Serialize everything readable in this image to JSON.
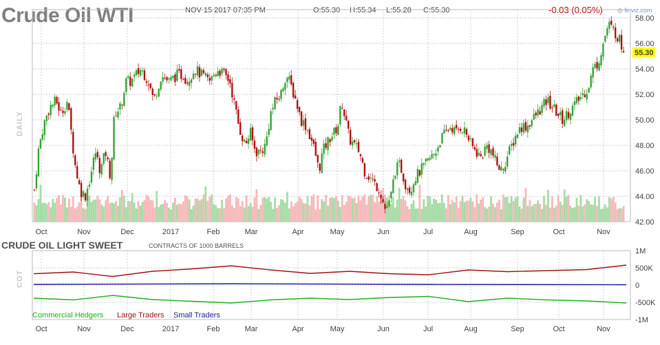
{
  "header": {
    "title": "Crude Oil WTI",
    "datetime": "NOV 15 2017 07:35 PM",
    "open": "O:55.30",
    "high": "H:55.34",
    "low": "L:55.28",
    "close": "C:55.30",
    "change": "-0.03 (0.05%)",
    "brand": "finviz.com",
    "period_label": "DAILY",
    "price_badge": "55.30"
  },
  "cot": {
    "title": "CRUDE OIL LIGHT SWEET",
    "subtitle": "CONTRACTS OF 1000 BARRELS",
    "side_label": "COT",
    "legend": [
      "Commercial Hedgers",
      "Large Traders",
      "Small Traders"
    ]
  },
  "colors": {
    "up": "#33a533",
    "down": "#b01010",
    "vol_up": "#a6dba6",
    "vol_down": "#f6b8b8",
    "hedgers": "#1fae1f",
    "large": "#a01010",
    "small": "#1a1a9a",
    "badge": "#ffff00"
  },
  "chart_data": [
    {
      "type": "candlestick",
      "title": "Crude Oil WTI",
      "x_ticks": [
        "Oct",
        "Nov",
        "Dec",
        "2017",
        "Feb",
        "Mar",
        "Apr",
        "May",
        "Jun",
        "Jul",
        "Aug",
        "Sep",
        "Oct",
        "Nov"
      ],
      "y_ticks": [
        "58.00",
        "56.00",
        "54.00",
        "52.00",
        "50.00",
        "48.00",
        "46.00",
        "44.00",
        "42.00"
      ],
      "ylim": [
        42,
        58
      ],
      "close_path": [
        {
          "x": 0.0,
          "y": 44.5
        },
        {
          "x": 0.15,
          "y": 47.5
        },
        {
          "x": 0.35,
          "y": 49.5
        },
        {
          "x": 0.6,
          "y": 51.0
        },
        {
          "x": 0.85,
          "y": 51.5
        },
        {
          "x": 1.05,
          "y": 50.5
        },
        {
          "x": 1.3,
          "y": 51.5
        },
        {
          "x": 1.45,
          "y": 49.0
        },
        {
          "x": 1.6,
          "y": 46.5
        },
        {
          "x": 1.8,
          "y": 44.5
        },
        {
          "x": 2.0,
          "y": 44.0
        },
        {
          "x": 2.2,
          "y": 45.5
        },
        {
          "x": 2.4,
          "y": 47.5
        },
        {
          "x": 2.6,
          "y": 46.0
        },
        {
          "x": 2.8,
          "y": 47.5
        },
        {
          "x": 3.0,
          "y": 45.5
        },
        {
          "x": 3.15,
          "y": 50.5
        },
        {
          "x": 3.4,
          "y": 51.0
        },
        {
          "x": 3.6,
          "y": 53.0
        },
        {
          "x": 3.8,
          "y": 53.0
        },
        {
          "x": 4.0,
          "y": 53.5
        },
        {
          "x": 4.2,
          "y": 54.0
        },
        {
          "x": 4.5,
          "y": 53.0
        },
        {
          "x": 4.7,
          "y": 51.5
        },
        {
          "x": 5.0,
          "y": 53.5
        },
        {
          "x": 5.3,
          "y": 53.0
        },
        {
          "x": 5.6,
          "y": 53.5
        },
        {
          "x": 5.9,
          "y": 53.5
        },
        {
          "x": 6.0,
          "y": 53.0
        },
        {
          "x": 6.3,
          "y": 54.0
        },
        {
          "x": 6.6,
          "y": 53.5
        },
        {
          "x": 6.9,
          "y": 53.0
        },
        {
          "x": 7.2,
          "y": 54.0
        },
        {
          "x": 7.5,
          "y": 53.5
        },
        {
          "x": 7.7,
          "y": 53.0
        },
        {
          "x": 7.9,
          "y": 51.0
        },
        {
          "x": 8.05,
          "y": 49.5
        },
        {
          "x": 8.3,
          "y": 48.0
        },
        {
          "x": 8.5,
          "y": 49.0
        },
        {
          "x": 8.7,
          "y": 47.5
        },
        {
          "x": 8.9,
          "y": 47.5
        },
        {
          "x": 9.1,
          "y": 48.0
        },
        {
          "x": 9.3,
          "y": 50.5
        },
        {
          "x": 9.5,
          "y": 51.5
        },
        {
          "x": 9.7,
          "y": 52.0
        },
        {
          "x": 9.9,
          "y": 53.5
        },
        {
          "x": 10.05,
          "y": 53.0
        },
        {
          "x": 10.3,
          "y": 51.5
        },
        {
          "x": 10.5,
          "y": 50.0
        },
        {
          "x": 10.7,
          "y": 49.5
        },
        {
          "x": 10.9,
          "y": 48.5
        },
        {
          "x": 11.05,
          "y": 47.5
        },
        {
          "x": 11.2,
          "y": 46.0
        },
        {
          "x": 11.35,
          "y": 47.5
        },
        {
          "x": 11.6,
          "y": 48.5
        },
        {
          "x": 11.8,
          "y": 49.0
        },
        {
          "x": 11.95,
          "y": 49.5
        },
        {
          "x": 12.1,
          "y": 51.5
        },
        {
          "x": 12.25,
          "y": 50.0
        },
        {
          "x": 12.4,
          "y": 48.5
        },
        {
          "x": 12.6,
          "y": 48.0
        },
        {
          "x": 12.8,
          "y": 47.5
        },
        {
          "x": 13.0,
          "y": 46.0
        },
        {
          "x": 13.2,
          "y": 45.5
        },
        {
          "x": 13.4,
          "y": 45.0
        },
        {
          "x": 13.6,
          "y": 44.5
        },
        {
          "x": 13.8,
          "y": 43.0
        },
        {
          "x": 14.0,
          "y": 43.5
        },
        {
          "x": 14.2,
          "y": 46.0
        },
        {
          "x": 14.4,
          "y": 46.5
        },
        {
          "x": 14.6,
          "y": 45.0
        },
        {
          "x": 14.8,
          "y": 44.5
        },
        {
          "x": 15.0,
          "y": 45.5
        },
        {
          "x": 15.2,
          "y": 46.0
        },
        {
          "x": 15.4,
          "y": 46.5
        },
        {
          "x": 15.6,
          "y": 47.0
        },
        {
          "x": 15.8,
          "y": 47.5
        },
        {
          "x": 16.0,
          "y": 48.5
        },
        {
          "x": 16.2,
          "y": 49.0
        },
        {
          "x": 16.4,
          "y": 49.5
        },
        {
          "x": 16.6,
          "y": 49.0
        },
        {
          "x": 16.8,
          "y": 49.5
        },
        {
          "x": 17.0,
          "y": 49.0
        },
        {
          "x": 17.2,
          "y": 48.0
        },
        {
          "x": 17.4,
          "y": 47.5
        },
        {
          "x": 17.6,
          "y": 47.0
        },
        {
          "x": 17.8,
          "y": 48.0
        },
        {
          "x": 18.0,
          "y": 47.5
        },
        {
          "x": 18.2,
          "y": 46.5
        },
        {
          "x": 18.4,
          "y": 46.0
        },
        {
          "x": 18.6,
          "y": 47.0
        },
        {
          "x": 18.8,
          "y": 48.0
        },
        {
          "x": 19.0,
          "y": 49.0
        },
        {
          "x": 19.2,
          "y": 49.5
        },
        {
          "x": 19.4,
          "y": 49.5
        },
        {
          "x": 19.6,
          "y": 50.0
        },
        {
          "x": 19.8,
          "y": 50.5
        },
        {
          "x": 20.0,
          "y": 51.0
        },
        {
          "x": 20.2,
          "y": 51.5
        },
        {
          "x": 20.4,
          "y": 51.0
        },
        {
          "x": 20.6,
          "y": 50.5
        },
        {
          "x": 20.8,
          "y": 50.0
        },
        {
          "x": 21.0,
          "y": 50.5
        },
        {
          "x": 21.2,
          "y": 51.0
        },
        {
          "x": 21.4,
          "y": 51.5
        },
        {
          "x": 21.6,
          "y": 52.0
        },
        {
          "x": 21.8,
          "y": 52.5
        },
        {
          "x": 22.0,
          "y": 54.0
        },
        {
          "x": 22.2,
          "y": 54.5
        },
        {
          "x": 22.4,
          "y": 56.0
        },
        {
          "x": 22.6,
          "y": 57.5
        },
        {
          "x": 22.8,
          "y": 57.0
        },
        {
          "x": 23.0,
          "y": 56.5
        },
        {
          "x": 23.2,
          "y": 55.3
        }
      ],
      "last_price": 55.3,
      "change": -0.03,
      "change_pct": 0.05
    },
    {
      "type": "line",
      "title": "CRUDE OIL LIGHT SWEET",
      "subtitle": "CONTRACTS OF 1000 BARRELS",
      "x_ticks": [
        "Oct",
        "Nov",
        "Dec",
        "2017",
        "Feb",
        "Mar",
        "Apr",
        "May",
        "Jun",
        "Jul",
        "Aug",
        "Sep",
        "Oct",
        "Nov"
      ],
      "y_ticks": [
        "1M",
        "500K",
        "0",
        "-500K",
        "-1M"
      ],
      "ylim": [
        -1000000,
        1000000
      ],
      "series": [
        {
          "name": "Commercial Hedgers",
          "points": [
            {
              "x": 0,
              "y": -380000
            },
            {
              "x": 1,
              "y": -430000
            },
            {
              "x": 2,
              "y": -300000
            },
            {
              "x": 3,
              "y": -420000
            },
            {
              "x": 4,
              "y": -470000
            },
            {
              "x": 5,
              "y": -520000
            },
            {
              "x": 6,
              "y": -430000
            },
            {
              "x": 7,
              "y": -380000
            },
            {
              "x": 8,
              "y": -420000
            },
            {
              "x": 9,
              "y": -360000
            },
            {
              "x": 10,
              "y": -330000
            },
            {
              "x": 11,
              "y": -480000
            },
            {
              "x": 12,
              "y": -380000
            },
            {
              "x": 13,
              "y": -430000
            },
            {
              "x": 14,
              "y": -460000
            },
            {
              "x": 15,
              "y": -520000
            }
          ]
        },
        {
          "name": "Large Traders",
          "points": [
            {
              "x": 0,
              "y": 330000
            },
            {
              "x": 1,
              "y": 380000
            },
            {
              "x": 2,
              "y": 250000
            },
            {
              "x": 3,
              "y": 400000
            },
            {
              "x": 4,
              "y": 470000
            },
            {
              "x": 5,
              "y": 560000
            },
            {
              "x": 6,
              "y": 440000
            },
            {
              "x": 7,
              "y": 340000
            },
            {
              "x": 8,
              "y": 400000
            },
            {
              "x": 9,
              "y": 330000
            },
            {
              "x": 10,
              "y": 300000
            },
            {
              "x": 11,
              "y": 440000
            },
            {
              "x": 12,
              "y": 390000
            },
            {
              "x": 13,
              "y": 420000
            },
            {
              "x": 14,
              "y": 450000
            },
            {
              "x": 15,
              "y": 580000
            }
          ]
        },
        {
          "name": "Small Traders",
          "points": [
            {
              "x": 0,
              "y": 20000
            },
            {
              "x": 5,
              "y": 40000
            },
            {
              "x": 10,
              "y": 20000
            },
            {
              "x": 15,
              "y": 10000
            }
          ]
        }
      ]
    }
  ]
}
